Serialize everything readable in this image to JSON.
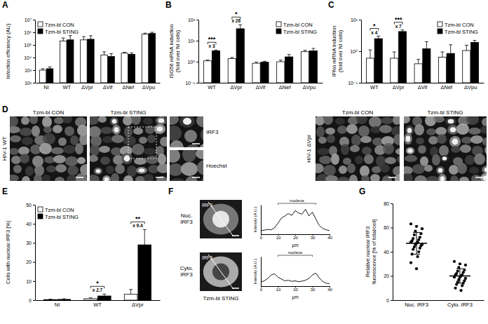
{
  "chart_data": [
    {
      "type": "bar",
      "title": "A",
      "y_label": "Infection efficiency (AU)",
      "categories": [
        "NI",
        "WT",
        "ΔVpr",
        "ΔVif",
        "ΔNef",
        "ΔVpu"
      ],
      "series": [
        {
          "name": "Tzm-bl CON",
          "color": "#ffffff",
          "values": [
            1000,
            200000,
            250000,
            16000,
            22000,
            700000
          ],
          "errors": [
            300,
            150000,
            200000,
            12000,
            4000,
            150000
          ]
        },
        {
          "name": "Tzm-bl STING",
          "color": "#000000",
          "values": [
            1300,
            250000,
            280000,
            12000,
            18000,
            800000
          ],
          "errors": [
            500,
            300000,
            250000,
            8000,
            5000,
            200000
          ]
        }
      ],
      "ylim": [
        100,
        10000000
      ],
      "yticks": [
        {
          "value": 100,
          "label": "10²"
        },
        {
          "value": 1000,
          "label": "10³"
        },
        {
          "value": 10000,
          "label": "10⁴"
        },
        {
          "value": 100000,
          "label": "10⁵"
        },
        {
          "value": 1000000,
          "label": "10⁶"
        },
        {
          "value": 10000000,
          "label": "10⁷"
        }
      ],
      "log": "y",
      "legend": "top-left"
    },
    {
      "type": "bar",
      "title": "B",
      "y_label": [
        "ISG56 mRNA induction",
        "(fold over NI cells)"
      ],
      "categories": [
        "WT",
        "ΔVpr",
        "ΔVif",
        "ΔNef",
        "ΔVpu"
      ],
      "series": [
        {
          "name": "Tzm-bl CON",
          "color": "#ffffff",
          "values": [
            1.1,
            1.4,
            0.85,
            1.0,
            3.0
          ],
          "errors": [
            0.1,
            0.2,
            0.1,
            0.2,
            0.5
          ]
        },
        {
          "name": "Tzm-bl STING",
          "color": "#000000",
          "values": [
            3.3,
            37,
            0.95,
            1.7,
            3.3
          ],
          "errors": [
            0.3,
            20,
            0.1,
            0.5,
            1.0
          ]
        }
      ],
      "ylim": [
        0.1,
        100
      ],
      "yticks": [
        {
          "value": 0.1,
          "label": "10⁻¹"
        },
        {
          "value": 1,
          "label": "10⁰"
        },
        {
          "value": 10,
          "label": "10¹"
        },
        {
          "value": 100,
          "label": "10²"
        }
      ],
      "log": "y",
      "legend": "top-right",
      "annotations": [
        {
          "category": "WT",
          "significance": "***",
          "fold": "x 3"
        },
        {
          "category": "ΔVpr",
          "significance": "*",
          "fold": "x 26"
        }
      ]
    },
    {
      "type": "bar",
      "title": "C",
      "y_label": [
        "IFNα mRNA induction",
        "(fold over NI cells)"
      ],
      "categories": [
        "WT",
        "ΔVpr",
        "ΔVif",
        "ΔNef",
        "ΔVpu"
      ],
      "series": [
        {
          "name": "Tzm-bl CON",
          "color": "#ffffff",
          "values": [
            0.6,
            0.6,
            0.4,
            0.65,
            1.05
          ],
          "errors": [
            0.5,
            0.35,
            0.15,
            0.3,
            0.5
          ]
        },
        {
          "name": "Tzm-bl STING",
          "color": "#000000",
          "values": [
            2.5,
            4.2,
            1.2,
            0.85,
            1.9
          ],
          "errors": [
            0.5,
            0.5,
            0.8,
            0.75,
            0.3
          ]
        }
      ],
      "ylim": [
        0.1,
        10
      ],
      "yticks": [
        {
          "value": 0.1,
          "label": "10⁻¹"
        },
        {
          "value": 1,
          "label": "10⁰"
        },
        {
          "value": 10,
          "label": "10¹"
        }
      ],
      "log": "y",
      "legend": "top-right",
      "annotations": [
        {
          "category": "WT",
          "significance": "*",
          "fold": "x 4"
        },
        {
          "category": "ΔVpr",
          "significance": "***",
          "fold": "x 7"
        }
      ]
    },
    {
      "type": "bar",
      "title": "E",
      "y_label": "Cells with nuclear IRF3 [%]",
      "categories": [
        "NI",
        "WT",
        "ΔVpr"
      ],
      "series": [
        {
          "name": "Tzm-bl CON",
          "color": "#ffffff",
          "values": [
            0.3,
            0.8,
            3.1
          ],
          "errors": [
            0.2,
            0.4,
            2.5
          ]
        },
        {
          "name": "Tzm-bl STING",
          "color": "#000000",
          "values": [
            0.4,
            2.2,
            29
          ],
          "errors": [
            0.3,
            1,
            8
          ]
        }
      ],
      "ylim": [
        0,
        50
      ],
      "yticks": [
        0,
        10,
        20,
        30,
        40,
        50
      ],
      "legend": "top-left",
      "annotations": [
        {
          "category": "WT",
          "significance": "*",
          "fold": "x 2.7"
        },
        {
          "category": "ΔVpr",
          "significance": "**",
          "fold": "x 9.4"
        }
      ]
    },
    {
      "type": "scatter",
      "title": "G",
      "y_label": [
        "Relative nuclear IRF3",
        "fluorescence [% of total/cell]"
      ],
      "categories": [
        "Nuc. IRF3",
        "Cyto. IRF3"
      ],
      "values": [
        [
          63,
          61,
          59,
          57,
          55,
          54,
          52,
          51,
          50,
          49,
          48,
          48,
          47,
          46,
          46,
          45,
          44,
          43,
          42,
          40,
          38,
          36,
          31,
          26
        ],
        [
          32,
          30,
          29,
          27,
          25,
          24,
          23,
          22,
          21,
          21,
          20,
          19,
          19,
          18,
          17,
          16,
          15,
          14,
          13,
          12,
          10,
          8
        ]
      ],
      "means": [
        47,
        20
      ],
      "sd": [
        9,
        6
      ],
      "color": "#000000",
      "marker": "circle",
      "ylim": [
        0,
        80
      ],
      "yticks": [
        0,
        20,
        40,
        60,
        80
      ]
    },
    {
      "type": "line",
      "x_label": "µm",
      "y_label": "Intensity (A.U.)",
      "x": [
        0,
        2,
        4,
        6,
        8,
        10,
        12,
        14,
        16,
        18,
        20,
        22,
        24,
        26,
        28,
        30,
        32,
        34,
        36,
        38,
        40
      ],
      "values": [
        12,
        14,
        16,
        15,
        22,
        38,
        55,
        62,
        70,
        64,
        80,
        72,
        68,
        85,
        62,
        75,
        52,
        30,
        20,
        15,
        12
      ],
      "xlim": [
        0,
        40
      ],
      "xticks": [
        0,
        10,
        20,
        30,
        40
      ],
      "ylim": [
        0,
        100
      ],
      "tick_labels": "x",
      "color": "#000000",
      "annotations": [
        {
          "text": "nucleus",
          "from": 10,
          "to": 32
        }
      ]
    },
    {
      "type": "line",
      "x_label": "µm",
      "y_label": "Intensity (A.U.)",
      "x": [
        0,
        2,
        4,
        6,
        8,
        10,
        12,
        14,
        16,
        18,
        20,
        22,
        24,
        26,
        28,
        30,
        32,
        34,
        36,
        38,
        40
      ],
      "values": [
        14,
        18,
        26,
        38,
        42,
        30,
        24,
        18,
        20,
        16,
        18,
        15,
        17,
        20,
        26,
        38,
        44,
        28,
        16,
        10,
        8
      ],
      "xlim": [
        0,
        40
      ],
      "xticks": [
        0,
        10,
        20,
        30,
        40
      ],
      "ylim": [
        0,
        100
      ],
      "tick_labels": "x",
      "color": "#000000",
      "annotations": [
        {
          "text": "nucleus",
          "from": 10,
          "to": 30
        }
      ]
    }
  ],
  "panel_d": {
    "label": "D",
    "groups": [
      {
        "title": "HIV-1 WT",
        "images": [
          "Tzm-bl CON",
          "Tzm-bl STING"
        ],
        "insets": [
          "IRF3",
          "Hoechst"
        ]
      },
      {
        "title": "HIV-1 ΔVpr",
        "images": [
          "Tzm-bl CON",
          "Tzm-bl STING"
        ]
      }
    ]
  },
  "panel_f": {
    "label": "F",
    "rows": [
      "Nuc. IRF3",
      "Cyto. IRF3"
    ],
    "image_label": "IRF3",
    "caption": "Tzm-bl STING"
  }
}
